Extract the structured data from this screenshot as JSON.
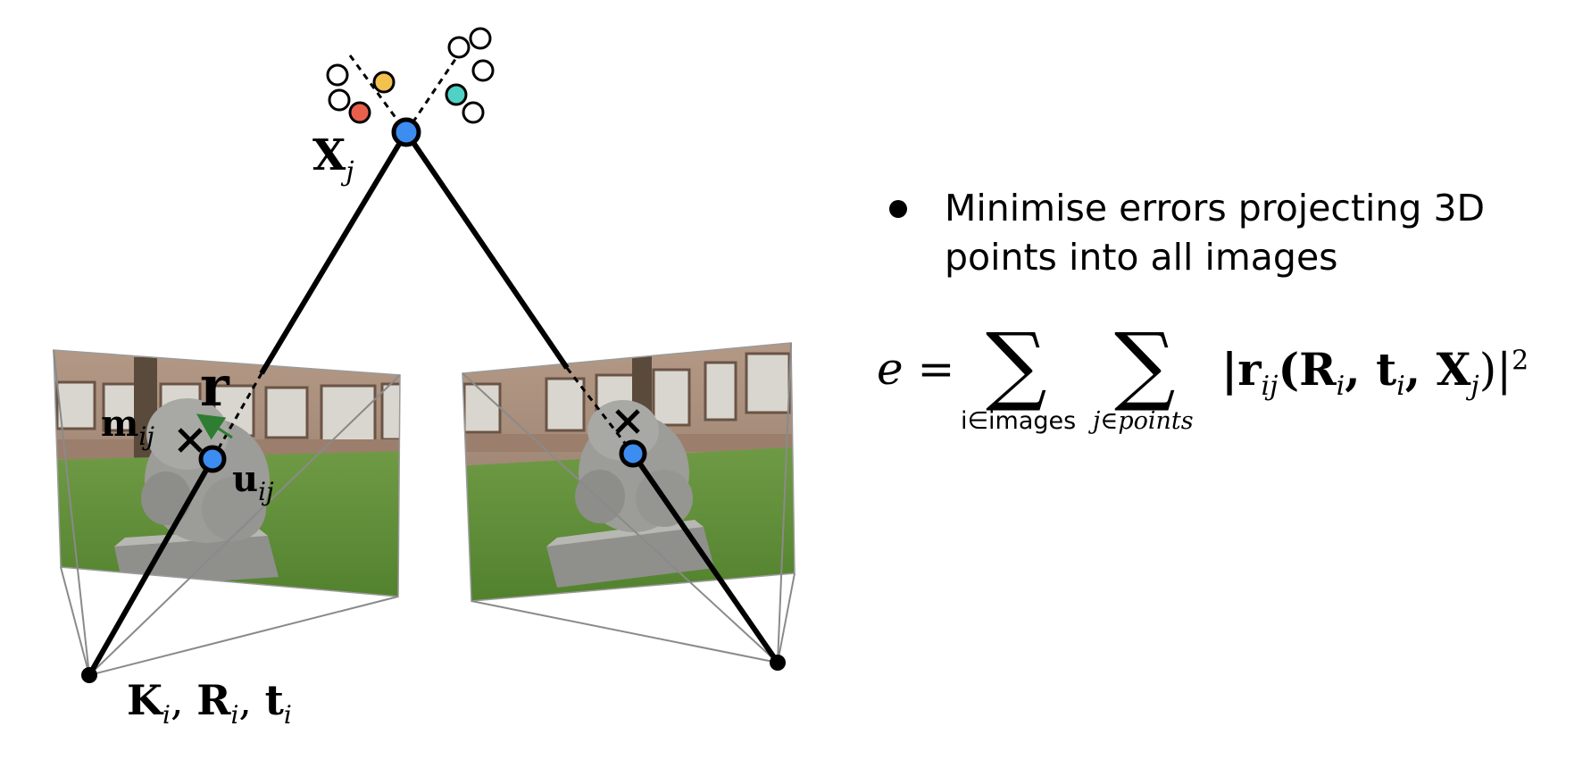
{
  "diagram": {
    "point_label": {
      "main": "X",
      "sub": "j"
    },
    "camera_label": {
      "k": "K",
      "r": "R",
      "t": "t",
      "sub": "i"
    },
    "residual_label": "r",
    "measured_label": {
      "main": "m",
      "sub": "ij"
    },
    "projected_label": {
      "main": "u",
      "sub": "ij"
    },
    "colors": {
      "projected_point": "#3d8cf0",
      "residual_arrow": "#2e7d32",
      "red_point": "#e8604c",
      "yellow_point": "#f2c14e",
      "teal_point": "#4fd1c5"
    }
  },
  "bullet": {
    "line1": "Minimise errors projecting 3D",
    "line2": "points into all images"
  },
  "equation": {
    "lhs": "e =",
    "sum1_sub": "i∈images",
    "sum2_sub": "j∈points",
    "term": "|r",
    "term_sub": "ij",
    "args": "(R",
    "args_i": "i",
    "t": ", t",
    "t_i": "i",
    "x": ", X",
    "x_j": "j",
    "close": ")|",
    "power": "2"
  }
}
